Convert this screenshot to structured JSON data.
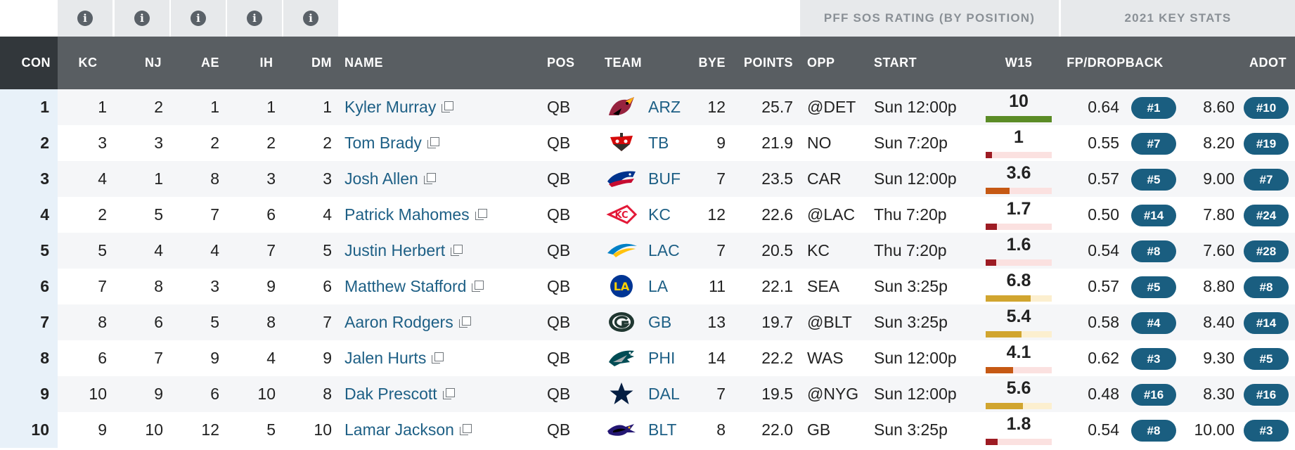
{
  "info_icons": [
    "info-icon",
    "info-icon",
    "info-icon",
    "info-icon",
    "info-icon"
  ],
  "info_glyph": "i",
  "group_headers": {
    "sos": "PFF SOS RATING (BY POSITION)",
    "stats": "2021 KEY STATS"
  },
  "columns": {
    "con": "CON",
    "kc": "KC",
    "nj": "NJ",
    "ae": "AE",
    "ih": "IH",
    "dm": "DM",
    "name": "NAME",
    "pos": "POS",
    "team": "TEAM",
    "bye": "BYE",
    "points": "POINTS",
    "opp": "OPP",
    "start": "START",
    "w15": "W15",
    "fp": "FP/DROPBACK",
    "adot": "ADOT"
  },
  "colors": {
    "green": "#5b8c26",
    "dark_red": "#9d1b23",
    "orange": "#c65914",
    "gold": "#d1a52f",
    "badge": "#1a5e80",
    "link": "#1d5f85"
  },
  "rows": [
    {
      "con": "1",
      "kc": "1",
      "nj": "2",
      "ae": "1",
      "ih": "1",
      "dm": "1",
      "name": "Kyler Murray",
      "pos": "QB",
      "team_icon": "cardinals-logo-icon",
      "team": "ARZ",
      "bye": "12",
      "points": "25.7",
      "opp": "@DET",
      "start": "Sun 12:00p",
      "w15": "10",
      "w15_level": 1.0,
      "w15_color": "#5b8c26",
      "w15_track": "#e6eedd",
      "fp": "0.64",
      "fp_rank": "#1",
      "adot": "8.60",
      "adot_rank": "#10"
    },
    {
      "con": "2",
      "kc": "3",
      "nj": "3",
      "ae": "2",
      "ih": "2",
      "dm": "2",
      "name": "Tom Brady",
      "pos": "QB",
      "team_icon": "buccaneers-logo-icon",
      "team": "TB",
      "bye": "9",
      "points": "21.9",
      "opp": "NO",
      "start": "Sun 7:20p",
      "w15": "1",
      "w15_level": 0.1,
      "w15_color": "#9d1b23",
      "w15_track": "#fbe1e0",
      "fp": "0.55",
      "fp_rank": "#7",
      "adot": "8.20",
      "adot_rank": "#19"
    },
    {
      "con": "3",
      "kc": "4",
      "nj": "1",
      "ae": "8",
      "ih": "3",
      "dm": "3",
      "name": "Josh Allen",
      "pos": "QB",
      "team_icon": "bills-logo-icon",
      "team": "BUF",
      "bye": "7",
      "points": "23.5",
      "opp": "CAR",
      "start": "Sun 12:00p",
      "w15": "3.6",
      "w15_level": 0.36,
      "w15_color": "#c65914",
      "w15_track": "#fbe1e0",
      "fp": "0.57",
      "fp_rank": "#5",
      "adot": "9.00",
      "adot_rank": "#7"
    },
    {
      "con": "4",
      "kc": "2",
      "nj": "5",
      "ae": "7",
      "ih": "6",
      "dm": "4",
      "name": "Patrick Mahomes",
      "pos": "QB",
      "team_icon": "chiefs-logo-icon",
      "team": "KC",
      "bye": "12",
      "points": "22.6",
      "opp": "@LAC",
      "start": "Thu 7:20p",
      "w15": "1.7",
      "w15_level": 0.17,
      "w15_color": "#9d1b23",
      "w15_track": "#fbe1e0",
      "fp": "0.50",
      "fp_rank": "#14",
      "adot": "7.80",
      "adot_rank": "#24"
    },
    {
      "con": "5",
      "kc": "5",
      "nj": "4",
      "ae": "4",
      "ih": "7",
      "dm": "5",
      "name": "Justin Herbert",
      "pos": "QB",
      "team_icon": "chargers-logo-icon",
      "team": "LAC",
      "bye": "7",
      "points": "20.5",
      "opp": "KC",
      "start": "Thu 7:20p",
      "w15": "1.6",
      "w15_level": 0.16,
      "w15_color": "#9d1b23",
      "w15_track": "#fbe1e0",
      "fp": "0.54",
      "fp_rank": "#8",
      "adot": "7.60",
      "adot_rank": "#28"
    },
    {
      "con": "6",
      "kc": "7",
      "nj": "8",
      "ae": "3",
      "ih": "9",
      "dm": "6",
      "name": "Matthew Stafford",
      "pos": "QB",
      "team_icon": "rams-logo-icon",
      "team": "LA",
      "bye": "11",
      "points": "22.1",
      "opp": "SEA",
      "start": "Sun 3:25p",
      "w15": "6.8",
      "w15_level": 0.68,
      "w15_color": "#d1a52f",
      "w15_track": "#fcefcf",
      "fp": "0.57",
      "fp_rank": "#5",
      "adot": "8.80",
      "adot_rank": "#8"
    },
    {
      "con": "7",
      "kc": "8",
      "nj": "6",
      "ae": "5",
      "ih": "8",
      "dm": "7",
      "name": "Aaron Rodgers",
      "pos": "QB",
      "team_icon": "packers-logo-icon",
      "team": "GB",
      "bye": "13",
      "points": "19.7",
      "opp": "@BLT",
      "start": "Sun 3:25p",
      "w15": "5.4",
      "w15_level": 0.54,
      "w15_color": "#d1a52f",
      "w15_track": "#fcefcf",
      "fp": "0.58",
      "fp_rank": "#4",
      "adot": "8.40",
      "adot_rank": "#14"
    },
    {
      "con": "8",
      "kc": "6",
      "nj": "7",
      "ae": "9",
      "ih": "4",
      "dm": "9",
      "name": "Jalen Hurts",
      "pos": "QB",
      "team_icon": "eagles-logo-icon",
      "team": "PHI",
      "bye": "14",
      "points": "22.2",
      "opp": "WAS",
      "start": "Sun 12:00p",
      "w15": "4.1",
      "w15_level": 0.41,
      "w15_color": "#c65914",
      "w15_track": "#fbe1e0",
      "fp": "0.62",
      "fp_rank": "#3",
      "adot": "9.30",
      "adot_rank": "#5"
    },
    {
      "con": "9",
      "kc": "10",
      "nj": "9",
      "ae": "6",
      "ih": "10",
      "dm": "8",
      "name": "Dak Prescott",
      "pos": "QB",
      "team_icon": "cowboys-logo-icon",
      "team": "DAL",
      "bye": "7",
      "points": "19.5",
      "opp": "@NYG",
      "start": "Sun 12:00p",
      "w15": "5.6",
      "w15_level": 0.56,
      "w15_color": "#d1a52f",
      "w15_track": "#fcefcf",
      "fp": "0.48",
      "fp_rank": "#16",
      "adot": "8.30",
      "adot_rank": "#16"
    },
    {
      "con": "10",
      "kc": "9",
      "nj": "10",
      "ae": "12",
      "ih": "5",
      "dm": "10",
      "name": "Lamar Jackson",
      "pos": "QB",
      "team_icon": "ravens-logo-icon",
      "team": "BLT",
      "bye": "8",
      "points": "22.0",
      "opp": "GB",
      "start": "Sun 3:25p",
      "w15": "1.8",
      "w15_level": 0.18,
      "w15_color": "#9d1b23",
      "w15_track": "#fbe1e0",
      "fp": "0.54",
      "fp_rank": "#8",
      "adot": "10.00",
      "adot_rank": "#3"
    }
  ]
}
